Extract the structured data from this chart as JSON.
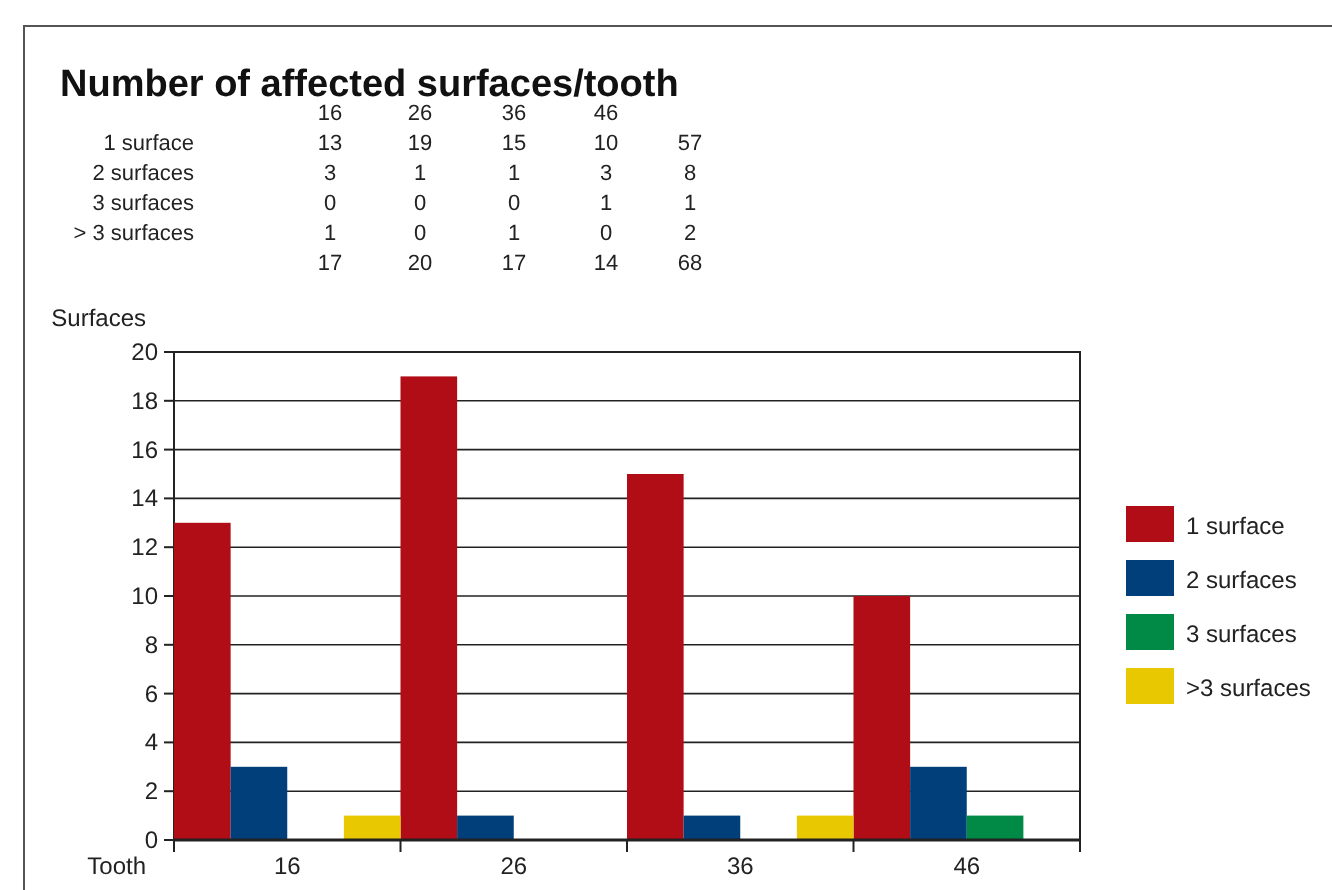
{
  "chart_data": [
    {
      "type": "heatmap",
      "data_labels": true,
      "title": "Number of affected surfaces/tooth",
      "categories": [
        "16",
        "26",
        "36",
        "46",
        null
      ],
      "y_categories": [
        "1 surface",
        "2 surfaces",
        "3 surfaces",
        "> 3 surfaces",
        null
      ],
      "cells": [
        [
          13,
          19,
          15,
          10,
          57
        ],
        [
          3,
          1,
          1,
          3,
          8
        ],
        [
          0,
          0,
          0,
          1,
          1
        ],
        [
          1,
          0,
          1,
          0,
          2
        ],
        [
          17,
          20,
          17,
          14,
          68
        ]
      ]
    },
    {
      "type": "bar",
      "xlabel": "Tooth",
      "ylabel": "Surfaces",
      "categories": [
        "16",
        "26",
        "36",
        "46"
      ],
      "series": [
        {
          "name": "1 surface",
          "color": "#b00d17",
          "values": [
            13,
            19,
            15,
            10
          ]
        },
        {
          "name": "2 surfaces",
          "color": "#003f7a",
          "values": [
            3,
            1,
            1,
            3
          ]
        },
        {
          "name": "3 surfaces",
          "color": "#008a45",
          "values": [
            0,
            0,
            0,
            1
          ]
        },
        {
          "name": ">3 surfaces",
          "color": "#e8c800",
          "values": [
            1,
            0,
            1,
            0
          ]
        }
      ],
      "ylim": [
        0,
        20
      ],
      "yticks": [
        0,
        2,
        4,
        6,
        8,
        10,
        12,
        14,
        16,
        18,
        20
      ],
      "grid": "y",
      "legend": "right"
    }
  ]
}
